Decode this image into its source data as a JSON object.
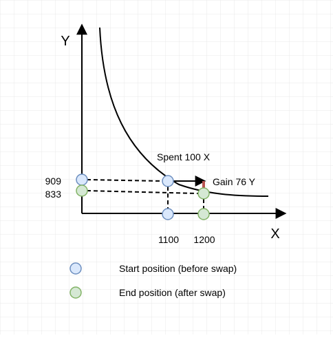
{
  "axes": {
    "x_label": "X",
    "y_label": "Y"
  },
  "start_point": {
    "x": 1100,
    "y": 909,
    "x_label": "1100",
    "y_label": "909"
  },
  "end_point": {
    "x": 1200,
    "y": 833,
    "x_label": "1200",
    "y_label": "833"
  },
  "annotations": {
    "spent": "Spent 100 X",
    "gain": "Gain 76 Y"
  },
  "legend": {
    "start_label": "Start position (before swap)",
    "end_label": "End position (after swap)"
  },
  "colors": {
    "grid": "#e8e8e8",
    "axis": "#000000",
    "start_fill": "#dae8fc",
    "start_stroke": "#6c8ebf",
    "end_fill": "#d5e8d4",
    "end_stroke": "#82b366",
    "gain_segment": "#b85450"
  }
}
